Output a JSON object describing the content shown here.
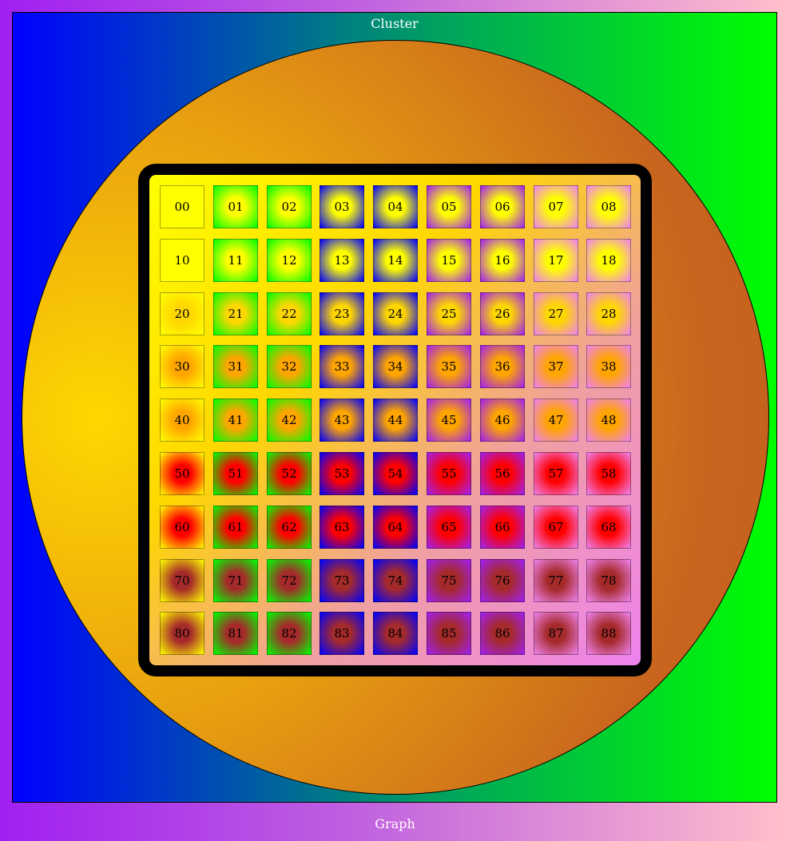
{
  "graph": {
    "label": "Graph"
  },
  "cluster": {
    "label": "Cluster"
  },
  "colors": {
    "rows": [
      "#ffff00",
      "#ffff00",
      "#ffd700",
      "#ffa500",
      "#ffa500",
      "#ff0000",
      "#ff0000",
      "#a52a2a",
      "#a52a2a"
    ],
    "cols": [
      "#ffff00",
      "#00ff00",
      "#00ff00",
      "#0000ff",
      "#0000ff",
      "#a020f0",
      "#a020f0",
      "#ee82ee",
      "#ee82ee"
    ]
  },
  "cells": [
    [
      "00",
      "01",
      "02",
      "03",
      "04",
      "05",
      "06",
      "07",
      "08"
    ],
    [
      "10",
      "11",
      "12",
      "13",
      "14",
      "15",
      "16",
      "17",
      "18"
    ],
    [
      "20",
      "21",
      "22",
      "23",
      "24",
      "25",
      "26",
      "27",
      "28"
    ],
    [
      "30",
      "31",
      "32",
      "33",
      "34",
      "35",
      "36",
      "37",
      "38"
    ],
    [
      "40",
      "41",
      "42",
      "43",
      "44",
      "45",
      "46",
      "47",
      "48"
    ],
    [
      "50",
      "51",
      "52",
      "53",
      "54",
      "55",
      "56",
      "57",
      "58"
    ],
    [
      "60",
      "61",
      "62",
      "63",
      "64",
      "65",
      "66",
      "67",
      "68"
    ],
    [
      "70",
      "71",
      "72",
      "73",
      "74",
      "75",
      "76",
      "77",
      "78"
    ],
    [
      "80",
      "81",
      "82",
      "83",
      "84",
      "85",
      "86",
      "87",
      "88"
    ]
  ]
}
